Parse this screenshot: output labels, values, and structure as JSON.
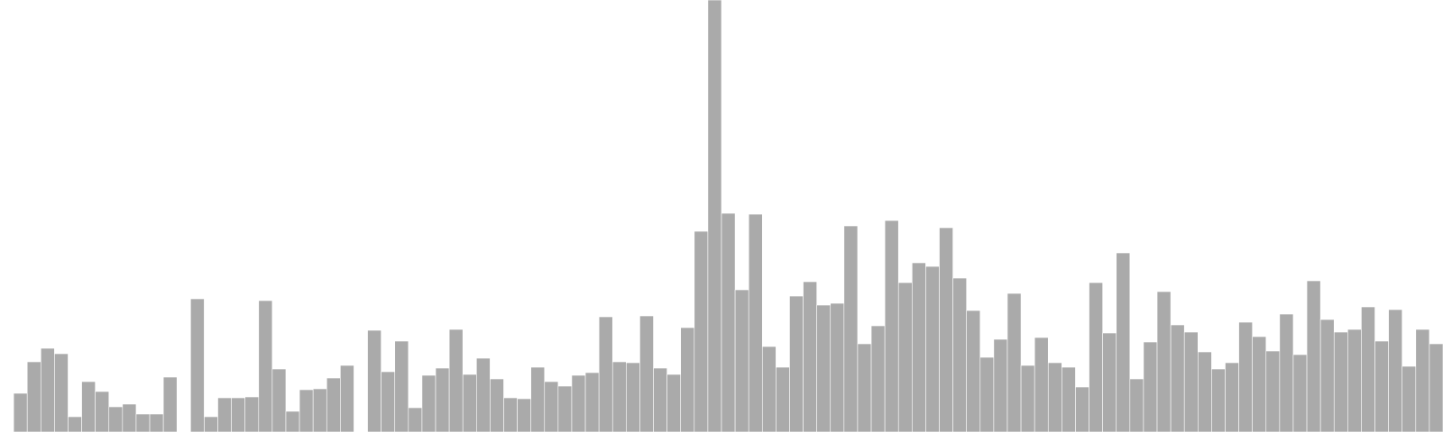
{
  "chart_data": {
    "type": "bar",
    "color": "#aaaaaa",
    "ylim": [
      0,
      480
    ],
    "values": [
      0,
      43,
      78,
      93,
      87,
      17,
      56,
      45,
      28,
      31,
      20,
      20,
      61,
      0,
      148,
      17,
      38,
      38,
      39,
      146,
      70,
      23,
      47,
      48,
      60,
      74,
      0,
      113,
      67,
      101,
      27,
      63,
      71,
      114,
      64,
      82,
      59,
      38,
      37,
      72,
      56,
      51,
      63,
      66,
      128,
      78,
      77,
      129,
      71,
      64,
      116,
      223,
      480,
      243,
      158,
      242,
      95,
      72,
      151,
      167,
      141,
      143,
      229,
      98,
      118,
      235,
      166,
      188,
      184,
      227,
      171,
      135,
      83,
      103,
      154,
      74,
      105,
      77,
      72,
      50,
      166,
      110,
      199,
      59,
      100,
      156,
      119,
      111,
      89,
      70,
      77,
      122,
      106,
      90,
      131,
      86,
      168,
      125,
      111,
      114,
      139,
      101,
      136,
      73,
      114,
      98
    ]
  }
}
